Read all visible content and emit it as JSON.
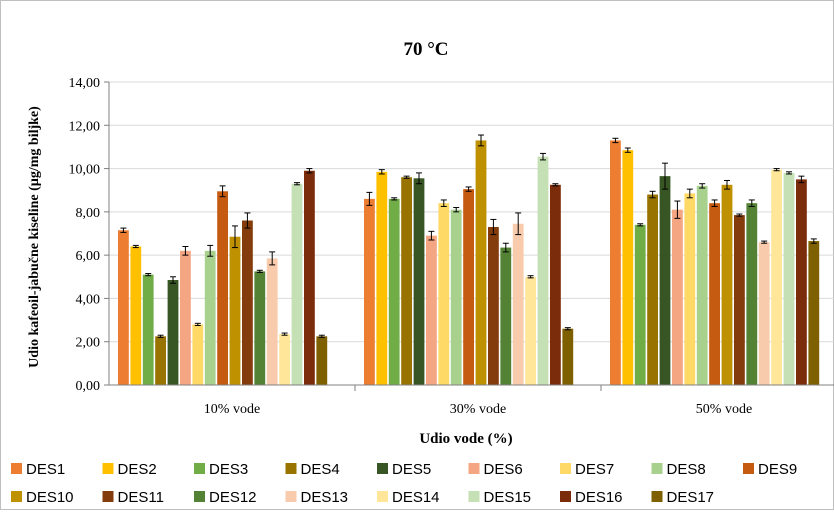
{
  "chart_data": {
    "type": "bar",
    "title": "70 °C",
    "xlabel": "Udio vode (%)",
    "ylabel": "Udio kafeoil-jabučne kiseline (µg/mg biljke)",
    "categories": [
      "10% vode",
      "30% vode",
      "50% vode"
    ],
    "ylim": [
      0,
      14
    ],
    "yticks": [
      "0,00",
      "2,00",
      "4,00",
      "6,00",
      "8,00",
      "10,00",
      "12,00",
      "14,00"
    ],
    "grid": true,
    "legend_position": "bottom",
    "series": [
      {
        "name": "DES1",
        "color": "#ed7d31",
        "values": [
          7.15,
          8.6,
          11.3
        ],
        "errors": [
          0.1,
          0.3,
          0.1
        ]
      },
      {
        "name": "DES2",
        "color": "#ffc000",
        "values": [
          6.4,
          9.85,
          10.85
        ],
        "errors": [
          0.05,
          0.1,
          0.1
        ]
      },
      {
        "name": "DES3",
        "color": "#70ad47",
        "values": [
          5.1,
          8.6,
          7.4
        ],
        "errors": [
          0.05,
          0.05,
          0.05
        ]
      },
      {
        "name": "DES4",
        "color": "#997300",
        "values": [
          2.25,
          9.6,
          8.8
        ],
        "errors": [
          0.05,
          0.05,
          0.15
        ]
      },
      {
        "name": "DES5",
        "color": "#375623",
        "values": [
          4.85,
          9.55,
          9.65
        ],
        "errors": [
          0.15,
          0.25,
          0.6
        ]
      },
      {
        "name": "DES6",
        "color": "#f4a582",
        "values": [
          6.2,
          6.9,
          8.1
        ],
        "errors": [
          0.2,
          0.2,
          0.4
        ]
      },
      {
        "name": "DES7",
        "color": "#ffd966",
        "values": [
          2.8,
          8.4,
          8.85
        ],
        "errors": [
          0.05,
          0.15,
          0.2
        ]
      },
      {
        "name": "DES8",
        "color": "#a9d18e",
        "values": [
          6.2,
          8.1,
          9.2
        ],
        "errors": [
          0.25,
          0.1,
          0.1
        ]
      },
      {
        "name": "DES9",
        "color": "#c55a11",
        "values": [
          8.95,
          9.05,
          8.4
        ],
        "errors": [
          0.25,
          0.1,
          0.15
        ]
      },
      {
        "name": "DES10",
        "color": "#bf9000",
        "values": [
          6.85,
          11.3,
          9.25
        ],
        "errors": [
          0.5,
          0.25,
          0.2
        ]
      },
      {
        "name": "DES11",
        "color": "#843c0c",
        "values": [
          7.6,
          7.3,
          7.85
        ],
        "errors": [
          0.35,
          0.35,
          0.05
        ]
      },
      {
        "name": "DES12",
        "color": "#548235",
        "values": [
          5.25,
          6.35,
          8.4
        ],
        "errors": [
          0.05,
          0.2,
          0.15
        ]
      },
      {
        "name": "DES13",
        "color": "#f8cbad",
        "values": [
          5.85,
          7.45,
          6.6
        ],
        "errors": [
          0.3,
          0.5,
          0.05
        ]
      },
      {
        "name": "DES14",
        "color": "#ffe699",
        "values": [
          2.35,
          5.0,
          9.95
        ],
        "errors": [
          0.05,
          0.05,
          0.05
        ]
      },
      {
        "name": "DES15",
        "color": "#c5e0b4",
        "values": [
          9.3,
          10.55,
          9.8
        ],
        "errors": [
          0.05,
          0.15,
          0.05
        ]
      },
      {
        "name": "DES16",
        "color": "#7b2c0a",
        "values": [
          9.9,
          9.25,
          9.5
        ],
        "errors": [
          0.1,
          0.05,
          0.15
        ]
      },
      {
        "name": "DES17",
        "color": "#7f6000",
        "values": [
          2.25,
          2.6,
          6.65
        ],
        "errors": [
          0.05,
          0.05,
          0.1
        ]
      }
    ]
  }
}
